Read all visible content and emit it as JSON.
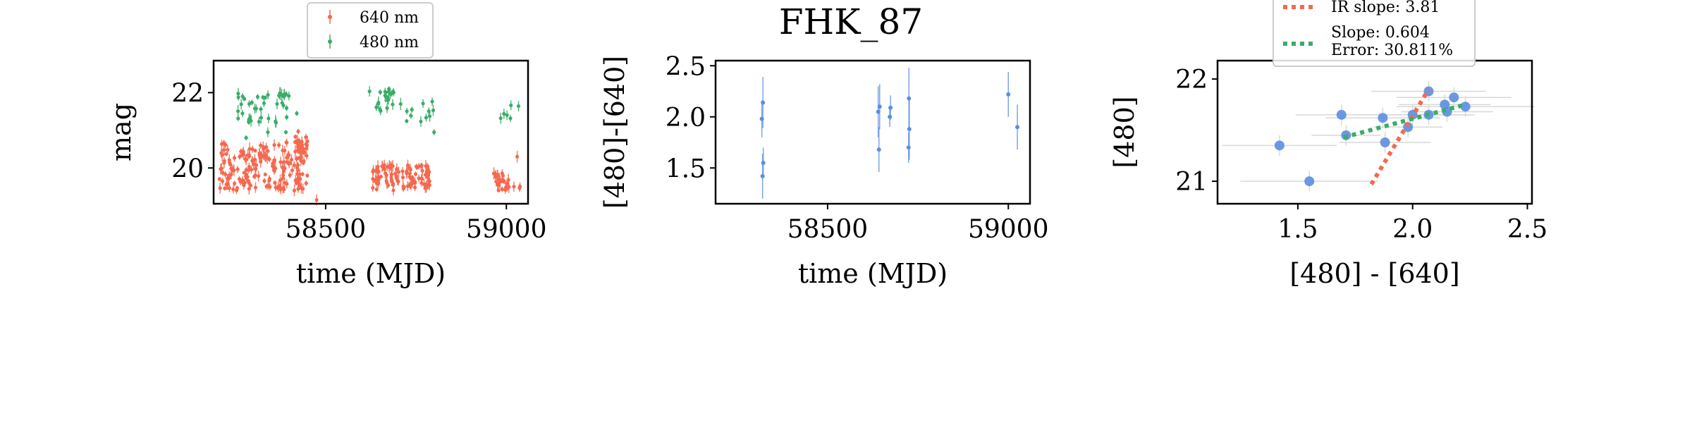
{
  "figure": {
    "title": "FHK_87"
  },
  "colors": {
    "red": "#f4694f",
    "green": "#3aad6a",
    "blue": "#5b8ee0",
    "grey": "#d8d8d8"
  },
  "chart_data": [
    {
      "type": "scatter",
      "xlabel": "time (MJD)",
      "ylabel": "mag",
      "xlim": [
        58190,
        59060
      ],
      "ylim": [
        22.85,
        19.05
      ],
      "xticks": [
        58500,
        59000
      ],
      "xticklabels": [
        "58500",
        "59000"
      ],
      "yticks": [
        20,
        22
      ],
      "yticklabels": [
        "20",
        "22"
      ],
      "legend_position": "above",
      "series": [
        {
          "name": "640 nm",
          "color": "red",
          "segments": [
            {
              "x_from": 58205,
              "x_to": 58450,
              "y_min": 19.4,
              "y_max": 20.7,
              "n": 190
            },
            {
              "x_from": 58415,
              "x_to": 58450,
              "y_min": 20.3,
              "y_max": 21.0,
              "n": 20
            },
            {
              "x_from": 58630,
              "x_to": 58790,
              "y_min": 19.4,
              "y_max": 20.1,
              "n": 110
            },
            {
              "x_from": 58960,
              "x_to": 59040,
              "y_min": 19.4,
              "y_max": 19.9,
              "n": 28
            }
          ],
          "extra_points": [
            [
              58475,
              19.15
            ],
            [
              58320,
              20.6
            ],
            [
              58340,
              20.45
            ],
            [
              59030,
              20.3
            ]
          ]
        },
        {
          "name": "480 nm",
          "color": "green",
          "segments": [
            {
              "x_from": 58255,
              "x_to": 58400,
              "y_min": 21.2,
              "y_max": 22.0,
              "n": 42
            },
            {
              "x_from": 58620,
              "x_to": 58700,
              "y_min": 21.5,
              "y_max": 22.1,
              "n": 22
            },
            {
              "x_from": 58700,
              "x_to": 58800,
              "y_min": 21.2,
              "y_max": 21.8,
              "n": 12
            },
            {
              "x_from": 58960,
              "x_to": 59040,
              "y_min": 21.3,
              "y_max": 21.7,
              "n": 6
            }
          ],
          "extra_points": [
            [
              58280,
              20.8
            ],
            [
              58340,
              20.95
            ],
            [
              58390,
              20.95
            ],
            [
              58800,
              20.95
            ],
            [
              58420,
              21.45
            ]
          ]
        }
      ]
    },
    {
      "type": "scatter",
      "xlabel": "time (MJD)",
      "ylabel": "[480]-[640]",
      "xlim": [
        58190,
        59060
      ],
      "ylim": [
        2.55,
        1.15
      ],
      "xticks": [
        58500,
        59000
      ],
      "xticklabels": [
        "58500",
        "59000"
      ],
      "yticks": [
        1.5,
        2.0,
        2.5
      ],
      "yticklabels": [
        "1.5",
        "2.0",
        "2.5"
      ],
      "points": [
        {
          "x": 58320,
          "y": 1.42,
          "err": 0.22
        },
        {
          "x": 58322,
          "y": 1.55,
          "err": 0.15
        },
        {
          "x": 58318,
          "y": 1.98,
          "err": 0.18
        },
        {
          "x": 58321,
          "y": 2.14,
          "err": 0.25
        },
        {
          "x": 58642,
          "y": 1.68,
          "err": 0.22
        },
        {
          "x": 58640,
          "y": 2.05,
          "err": 0.25
        },
        {
          "x": 58644,
          "y": 2.1,
          "err": 0.22
        },
        {
          "x": 58672,
          "y": 2.0,
          "err": 0.1
        },
        {
          "x": 58674,
          "y": 2.09,
          "err": 0.12
        },
        {
          "x": 58724,
          "y": 1.7,
          "err": 0.15
        },
        {
          "x": 58726,
          "y": 1.88,
          "err": 0.3
        },
        {
          "x": 58725,
          "y": 2.18,
          "err": 0.3
        },
        {
          "x": 59000,
          "y": 2.22,
          "err": 0.22
        },
        {
          "x": 59025,
          "y": 1.9,
          "err": 0.22
        }
      ]
    },
    {
      "type": "scatter",
      "xlabel": "[480] - [640]",
      "ylabel": "[480]",
      "xlim": [
        1.15,
        2.52
      ],
      "ylim": [
        22.18,
        20.78
      ],
      "xticks": [
        1.5,
        2.0,
        2.5
      ],
      "xticklabels": [
        "1.5",
        "2.0",
        "2.5"
      ],
      "yticks": [
        21,
        22
      ],
      "yticklabels": [
        "21",
        "22"
      ],
      "legend_position": "top",
      "points": [
        {
          "x": 1.42,
          "y": 21.35,
          "xerr": 0.25,
          "yerr": 0.1
        },
        {
          "x": 1.55,
          "y": 21.0,
          "xerr": 0.3,
          "yerr": 0.1
        },
        {
          "x": 1.69,
          "y": 21.65,
          "xerr": 0.2,
          "yerr": 0.1
        },
        {
          "x": 1.71,
          "y": 21.45,
          "xerr": 0.15,
          "yerr": 0.1
        },
        {
          "x": 1.88,
          "y": 21.38,
          "xerr": 0.2,
          "yerr": 0.1
        },
        {
          "x": 1.87,
          "y": 21.62,
          "xerr": 0.25,
          "yerr": 0.1
        },
        {
          "x": 1.98,
          "y": 21.53,
          "xerr": 0.15,
          "yerr": 0.1
        },
        {
          "x": 2.0,
          "y": 21.65,
          "xerr": 0.25,
          "yerr": 0.1
        },
        {
          "x": 2.07,
          "y": 21.65,
          "xerr": 0.2,
          "yerr": 0.1
        },
        {
          "x": 2.07,
          "y": 21.88,
          "xerr": 0.25,
          "yerr": 0.1
        },
        {
          "x": 2.14,
          "y": 21.75,
          "xerr": 0.2,
          "yerr": 0.1
        },
        {
          "x": 2.15,
          "y": 21.68,
          "xerr": 0.2,
          "yerr": 0.1
        },
        {
          "x": 2.18,
          "y": 21.82,
          "xerr": 0.25,
          "yerr": 0.1
        },
        {
          "x": 2.23,
          "y": 21.73,
          "xerr": 0.3,
          "yerr": 0.1
        }
      ],
      "lines": [
        {
          "label": "IR slope: 3.81",
          "color": "red",
          "x": [
            1.82,
            2.07
          ],
          "y": [
            20.97,
            21.9
          ]
        },
        {
          "label": "Slope: 0.604\nError: 30.811%",
          "color": "green",
          "x": [
            1.7,
            2.23
          ],
          "y": [
            21.43,
            21.75
          ]
        }
      ]
    }
  ]
}
